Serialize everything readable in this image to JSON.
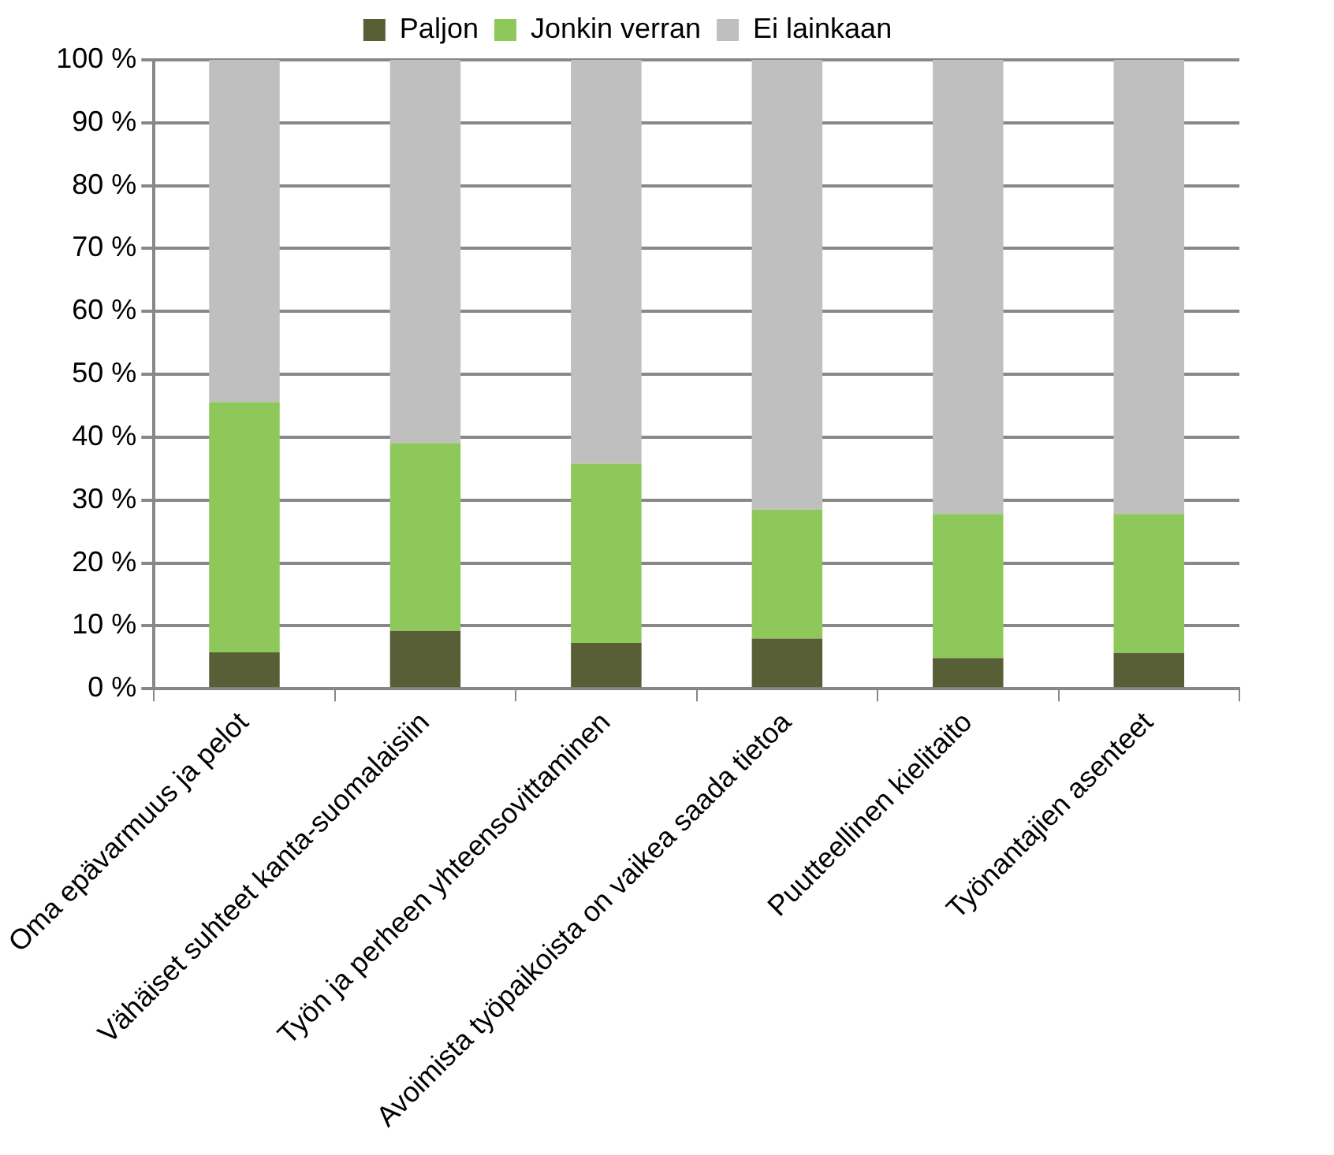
{
  "chart_data": {
    "type": "bar",
    "stacked": true,
    "categories": [
      "Oma epävarmuus ja pelot",
      "Vähäiset suhteet kanta-suomalaisiin",
      "Työn ja perheen yhteensovittaminen",
      "Avoimista työpaikoista on vaikea saada tietoa",
      "Puutteellinen kielitaito",
      "Työnantajien asenteet"
    ],
    "series": [
      {
        "name": "Paljon",
        "color": "#585f37",
        "values": [
          5.8,
          9.2,
          7.3,
          8.0,
          4.9,
          5.7
        ]
      },
      {
        "name": "Jonkin verran",
        "color": "#8fc85a",
        "values": [
          39.8,
          29.9,
          28.5,
          20.5,
          22.9,
          22.1
        ]
      },
      {
        "name": "Ei lainkaan",
        "color": "#bfbfbf",
        "values": [
          54.4,
          60.9,
          64.2,
          71.5,
          72.2,
          72.2
        ]
      }
    ],
    "ylim": [
      0,
      100
    ],
    "yticks": [
      {
        "value": 0,
        "label": "0 %"
      },
      {
        "value": 10,
        "label": "10 %"
      },
      {
        "value": 20,
        "label": "20 %"
      },
      {
        "value": 30,
        "label": "30 %"
      },
      {
        "value": 40,
        "label": "40 %"
      },
      {
        "value": 50,
        "label": "50 %"
      },
      {
        "value": 60,
        "label": "60 %"
      },
      {
        "value": 70,
        "label": "70 %"
      },
      {
        "value": 80,
        "label": "80 %"
      },
      {
        "value": 90,
        "label": "90 %"
      },
      {
        "value": 100,
        "label": "100 %"
      }
    ],
    "grid": "y",
    "legend": "top"
  }
}
